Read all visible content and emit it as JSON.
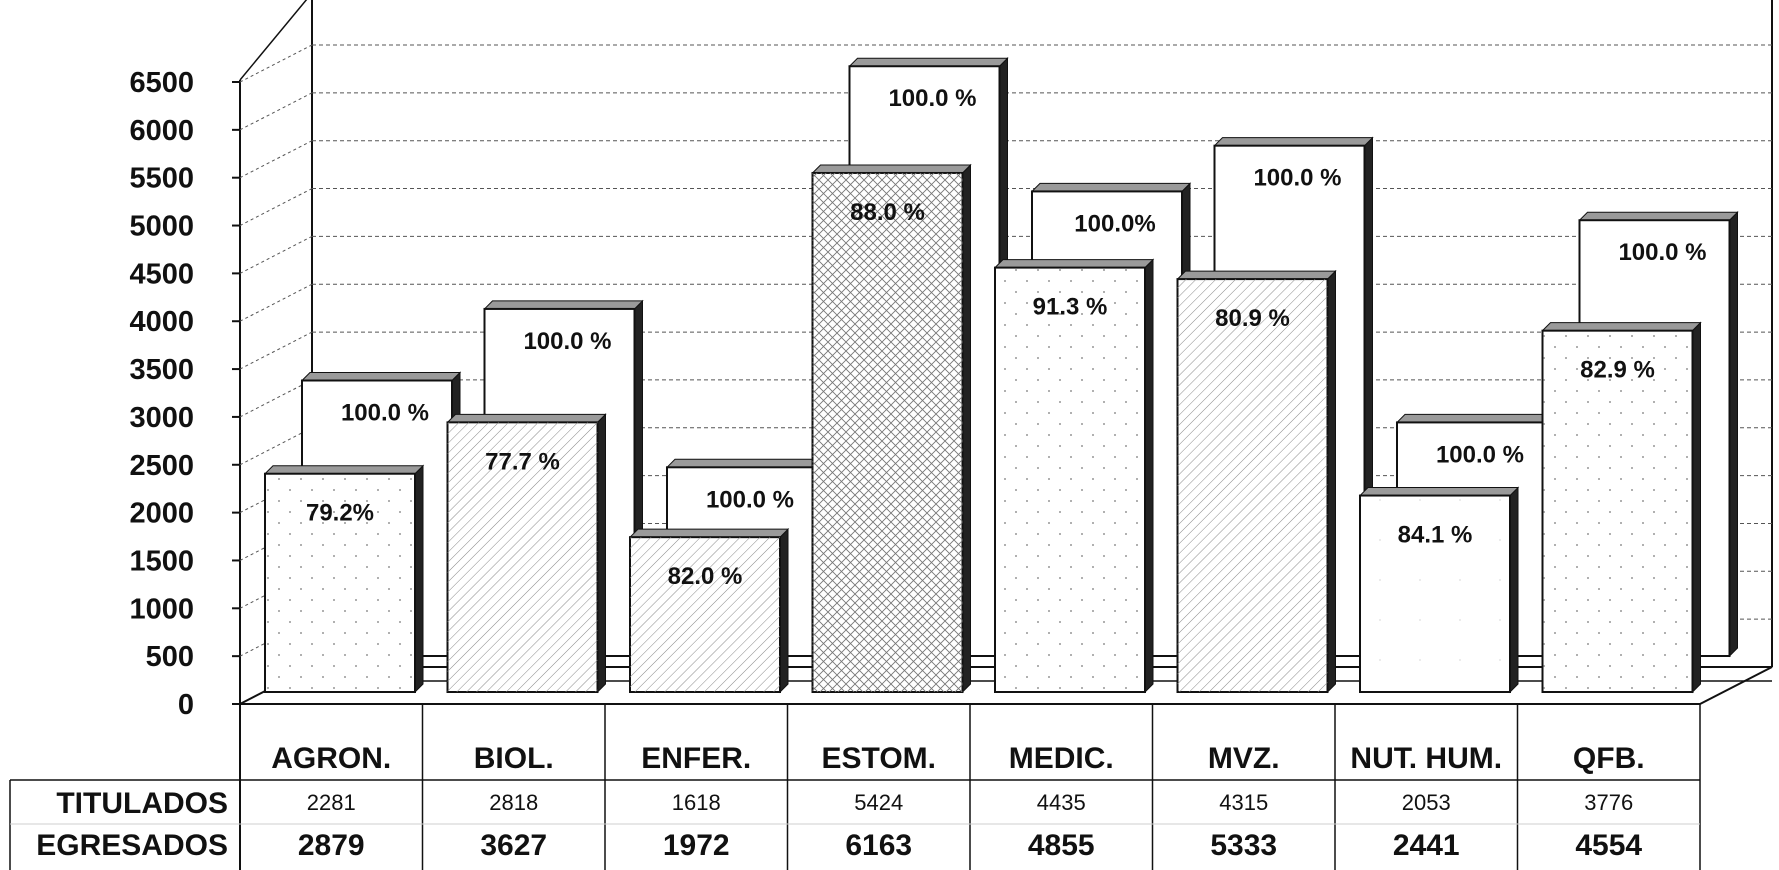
{
  "chart_data": {
    "type": "bar",
    "categories": [
      "AGRON.",
      "BIOL.",
      "ENFER.",
      "ESTOM.",
      "MEDIC.",
      "MVZ.",
      "NUT. HUM.",
      "QFB."
    ],
    "y_ticks": [
      "0",
      "500",
      "1000",
      "1500",
      "2000",
      "2500",
      "3000",
      "3500",
      "4000",
      "4500",
      "5000",
      "5500",
      "6000",
      "6500"
    ],
    "ylim": [
      0,
      6500
    ],
    "grid": true,
    "series": [
      {
        "name": "TITULADOS",
        "values": [
          2281,
          2818,
          1618,
          5424,
          4435,
          4315,
          2053,
          3776
        ],
        "value_labels": [
          "2281",
          "2818",
          "1618",
          "5424",
          "4435",
          "4315",
          "2053",
          "3776"
        ],
        "percent_labels": [
          "79.2%",
          "77.7 %",
          "82.0 %",
          "88.0 %",
          "91.3  %",
          "80.9 %",
          "84.1  %",
          "82.9 %"
        ]
      },
      {
        "name": "EGRESADOS",
        "values": [
          2879,
          3627,
          1972,
          6163,
          4855,
          5333,
          2441,
          4554
        ],
        "value_labels": [
          "2879",
          "3627",
          "1972",
          "6163",
          "4855",
          "5333",
          "2441",
          "4554"
        ],
        "percent_labels": [
          "100.0 %",
          "100.0 %",
          "100.0 %",
          "100.0 %",
          "100.0%",
          "100.0 %",
          "100.0 %",
          "100.0 %"
        ]
      }
    ],
    "front_patterns": [
      "dots",
      "hatch",
      "hatch",
      "crosshatch",
      "dots",
      "hatch",
      "plain",
      "dots"
    ],
    "colors": {
      "face": "#ffffff",
      "edge": "#111111",
      "side": "#222222",
      "top": "#9a9a9a",
      "grid": "#555555"
    }
  }
}
